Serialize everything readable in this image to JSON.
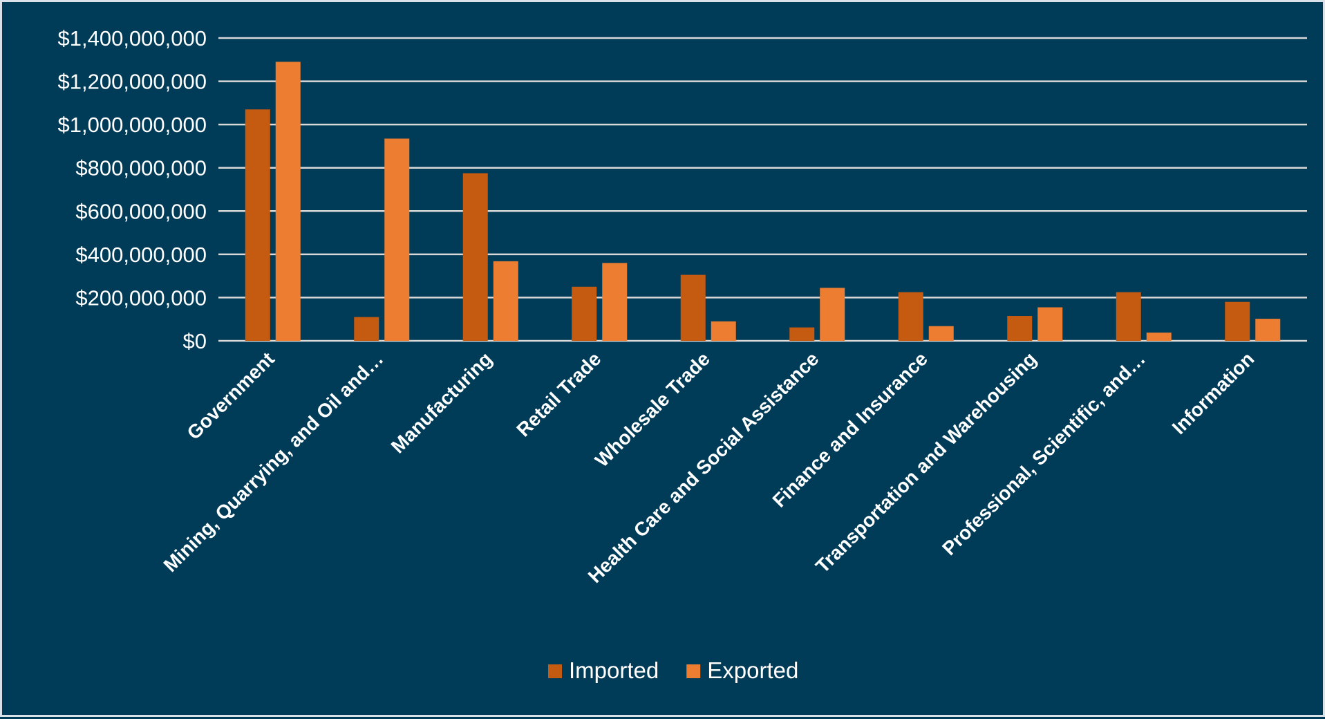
{
  "chart_data": {
    "type": "bar",
    "title": "",
    "xlabel": "",
    "ylabel": "",
    "ylim": [
      0,
      1400000000
    ],
    "y_ticks": [
      0,
      200000000,
      400000000,
      600000000,
      800000000,
      1000000000,
      1200000000,
      1400000000
    ],
    "y_tick_labels": [
      "$0",
      "$200,000,000",
      "$400,000,000",
      "$600,000,000",
      "$800,000,000",
      "$1,000,000,000",
      "$1,200,000,000",
      "$1,400,000,000"
    ],
    "grid": true,
    "legend_position": "bottom",
    "categories": [
      "Government",
      "Mining, Quarrying, and Oil and…",
      "Manufacturing",
      "Retail Trade",
      "Wholesale Trade",
      "Health Care and Social Assistance",
      "Finance and Insurance",
      "Transportation and Warehousing",
      "Professional, Scientific, and…",
      "Information"
    ],
    "series": [
      {
        "name": "Imported",
        "color": "#c55a11",
        "values": [
          1070000000,
          110000000,
          775000000,
          250000000,
          305000000,
          62000000,
          225000000,
          115000000,
          225000000,
          180000000
        ]
      },
      {
        "name": "Exported",
        "color": "#ed7d31",
        "values": [
          1290000000,
          935000000,
          368000000,
          360000000,
          90000000,
          245000000,
          68000000,
          155000000,
          38000000,
          102000000
        ]
      }
    ],
    "colors": {
      "background": "#003b57",
      "gridline": "#d9d9d9",
      "text": "#ffffff"
    }
  }
}
